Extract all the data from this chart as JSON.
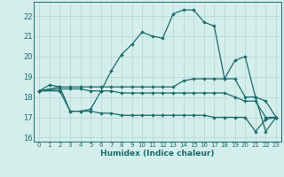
{
  "xlabel": "Humidex (Indice chaleur)",
  "bg_color": "#d4eeec",
  "grid_color": "#b8d8d8",
  "line_color": "#1a6b6b",
  "xlim": [
    -0.5,
    23.5
  ],
  "ylim": [
    15.8,
    22.7
  ],
  "yticks": [
    16,
    17,
    18,
    19,
    20,
    21,
    22
  ],
  "xticks": [
    0,
    1,
    2,
    3,
    4,
    5,
    6,
    7,
    8,
    9,
    10,
    11,
    12,
    13,
    14,
    15,
    16,
    17,
    18,
    19,
    20,
    21,
    22,
    23
  ],
  "line1_x": [
    0,
    1,
    2,
    3,
    4,
    5,
    6,
    7,
    8,
    9,
    10,
    11,
    12,
    13,
    14,
    15,
    16,
    17,
    18,
    19,
    20,
    21,
    22,
    23
  ],
  "line1_y": [
    18.3,
    18.6,
    18.5,
    17.3,
    17.3,
    17.4,
    18.3,
    19.3,
    20.1,
    20.6,
    21.2,
    21.0,
    20.9,
    22.1,
    22.3,
    22.3,
    21.7,
    21.5,
    18.9,
    19.8,
    20.0,
    18.0,
    16.3,
    17.0
  ],
  "line2_x": [
    0,
    2,
    3,
    4,
    5,
    6,
    7,
    8,
    9,
    10,
    11,
    12,
    13,
    14,
    15,
    16,
    17,
    18,
    19,
    20,
    21,
    22,
    23
  ],
  "line2_y": [
    18.3,
    18.5,
    18.5,
    18.5,
    18.5,
    18.5,
    18.5,
    18.5,
    18.5,
    18.5,
    18.5,
    18.5,
    18.5,
    18.8,
    18.9,
    18.9,
    18.9,
    18.9,
    18.9,
    18.0,
    18.0,
    17.8,
    17.0
  ],
  "line3_x": [
    0,
    2,
    3,
    4,
    5,
    6,
    7,
    8,
    9,
    10,
    11,
    12,
    13,
    14,
    15,
    16,
    17,
    18,
    19,
    20,
    21,
    22,
    23
  ],
  "line3_y": [
    18.3,
    18.4,
    18.4,
    18.4,
    18.3,
    18.3,
    18.3,
    18.2,
    18.2,
    18.2,
    18.2,
    18.2,
    18.2,
    18.2,
    18.2,
    18.2,
    18.2,
    18.2,
    18.0,
    17.8,
    17.8,
    17.0,
    17.0
  ],
  "line4_x": [
    0,
    2,
    3,
    4,
    5,
    6,
    7,
    8,
    9,
    10,
    11,
    12,
    13,
    14,
    15,
    16,
    17,
    18,
    19,
    20,
    21,
    22,
    23
  ],
  "line4_y": [
    18.3,
    18.3,
    17.3,
    17.3,
    17.3,
    17.2,
    17.2,
    17.1,
    17.1,
    17.1,
    17.1,
    17.1,
    17.1,
    17.1,
    17.1,
    17.1,
    17.0,
    17.0,
    17.0,
    17.0,
    16.3,
    16.9,
    17.0
  ]
}
